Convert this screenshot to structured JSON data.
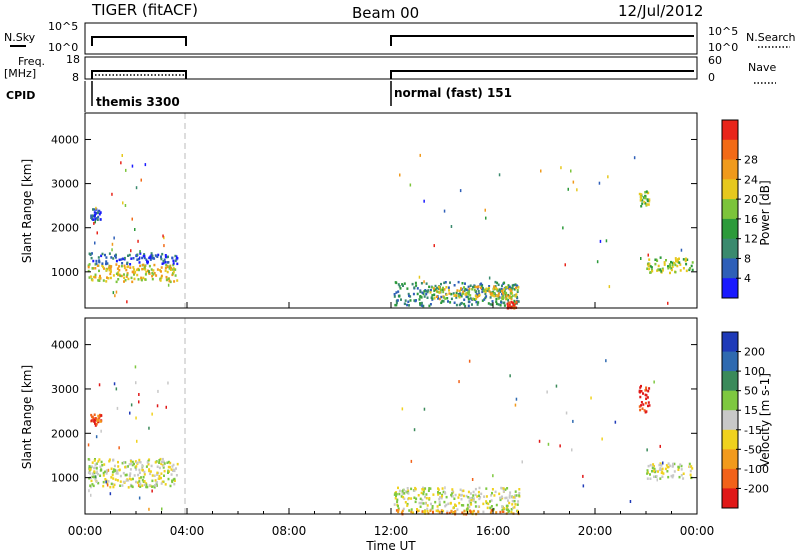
{
  "header": {
    "title": "TIGER (fitACF)",
    "beam": "Beam 00",
    "date": "12/Jul/2012"
  },
  "panels": {
    "nsky_label": "N.Sky",
    "nsky_ticks": [
      "10^5",
      "10^0"
    ],
    "nsky_right_ticks": [
      "10^5",
      "10^0"
    ],
    "nsearch_label": "N.Search",
    "freq_label": "Freq.",
    "freq_unit": "[MHz]",
    "freq_ticks": [
      "18",
      "8"
    ],
    "nave_label": "Nave",
    "nave_ticks": [
      "60",
      "0"
    ],
    "cpid_label": "CPID",
    "cpid_1": "themis 3300",
    "cpid_2": "normal (fast) 151"
  },
  "chart_data": [
    {
      "type": "heatmap",
      "panel": "power",
      "ylabel": "Slant Range [km]",
      "xlabel": "",
      "xlim": [
        0,
        24
      ],
      "ylim": [
        180,
        4600
      ],
      "x_tick_labels": [
        "00:00",
        "04:00",
        "08:00",
        "12:00",
        "16:00",
        "20:00",
        "00:00"
      ],
      "y_ticks": [
        1000,
        2000,
        3000,
        4000
      ],
      "colorbar": {
        "label": "Power [dB]",
        "ticks": [
          "4",
          "8",
          "12",
          "16",
          "20",
          "24",
          "28"
        ],
        "colors": [
          "#1a1aff",
          "#2e5fb8",
          "#3a8a6e",
          "#2c9a3a",
          "#7cc43a",
          "#e6c81e",
          "#f09a1c",
          "#f26a16",
          "#e8241a"
        ]
      },
      "regions": [
        {
          "t0": 0.1,
          "t1": 3.6,
          "r0": 800,
          "r1": 1200,
          "level": 5
        },
        {
          "t0": 0.1,
          "t1": 3.6,
          "r0": 1200,
          "r1": 1450,
          "level": 1
        },
        {
          "t0": 0.2,
          "t1": 0.6,
          "r0": 2200,
          "r1": 2450,
          "level": 1
        },
        {
          "t0": 12.1,
          "t1": 17.0,
          "r0": 250,
          "r1": 800,
          "level": 2
        },
        {
          "t0": 13.5,
          "t1": 17.0,
          "r0": 400,
          "r1": 700,
          "level": 5
        },
        {
          "t0": 16.5,
          "t1": 16.9,
          "r0": 200,
          "r1": 350,
          "level": 8
        },
        {
          "t0": 21.7,
          "t1": 22.1,
          "r0": 2500,
          "r1": 2850,
          "level": 4
        },
        {
          "t0": 22.0,
          "t1": 23.8,
          "r0": 1000,
          "r1": 1350,
          "level": 4
        }
      ]
    },
    {
      "type": "heatmap",
      "panel": "velocity",
      "ylabel": "Slant Range [km]",
      "xlabel": "Time UT",
      "xlim": [
        0,
        24
      ],
      "ylim": [
        180,
        4600
      ],
      "x_tick_labels": [
        "00:00",
        "04:00",
        "08:00",
        "12:00",
        "16:00",
        "20:00",
        "00:00"
      ],
      "y_ticks": [
        1000,
        2000,
        3000,
        4000
      ],
      "colorbar": {
        "label": "Velocity [m s-1]",
        "ticks": [
          "200",
          "100",
          "50",
          "15",
          "-15",
          "-50",
          "-100",
          "-200"
        ],
        "colors": [
          "#1f3ab8",
          "#2f6ab0",
          "#3a8a5a",
          "#7ec840",
          "#c8c8c8",
          "#f0d21e",
          "#f29a1c",
          "#f2621a",
          "#e01818"
        ]
      },
      "regions": [
        {
          "t0": 0.1,
          "t1": 3.6,
          "r0": 800,
          "r1": 1200,
          "level": 4
        },
        {
          "t0": 0.1,
          "t1": 3.6,
          "r0": 1200,
          "r1": 1450,
          "level": 4
        },
        {
          "t0": 0.2,
          "t1": 0.6,
          "r0": 2200,
          "r1": 2450,
          "level": 7
        },
        {
          "t0": 12.1,
          "t1": 17.0,
          "r0": 250,
          "r1": 800,
          "level": 4
        },
        {
          "t0": 12.1,
          "t1": 17.0,
          "r0": 200,
          "r1": 300,
          "level": 6
        },
        {
          "t0": 21.7,
          "t1": 22.1,
          "r0": 2500,
          "r1": 3100,
          "level": 8
        },
        {
          "t0": 22.0,
          "t1": 23.8,
          "r0": 1000,
          "r1": 1350,
          "level": 4
        }
      ]
    }
  ]
}
